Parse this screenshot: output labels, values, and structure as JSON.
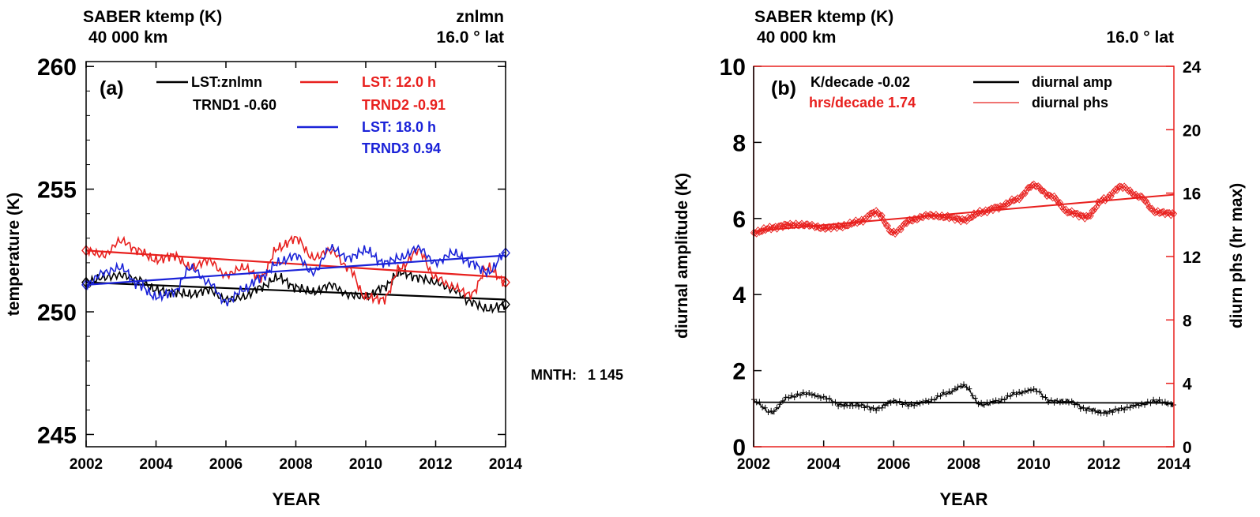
{
  "left_panel": {
    "header_title": "SABER ktemp (K)",
    "header_alt": "40 000 km",
    "header_right": "znlmn",
    "header_lat": "16.0 ° lat",
    "panel_label": "(a)",
    "ylabel": "temperature (K)",
    "xlabel": "YEAR",
    "xticks": [
      "2002",
      "2004",
      "2006",
      "2008",
      "2010",
      "2012",
      "2014"
    ],
    "yticks": [
      "245",
      "250",
      "255",
      "260"
    ],
    "legend": {
      "black_label": "LST:znlmn",
      "black_trend": "TRND1  -0.60",
      "red_label": "LST: 12.0 h",
      "red_trend": "TRND2  -0.91",
      "blue_label": "LST: 18.0 h",
      "blue_trend": "TRND3   0.94"
    }
  },
  "right_panel": {
    "header_title": "SABER ktemp (K)",
    "header_alt": "40 000 km",
    "header_lat": "16.0 ° lat",
    "panel_label": "(b)",
    "ylabel_left": "diurnal amplitude (K)",
    "ylabel_right": "diurn phs (hr max)",
    "xlabel": "YEAR",
    "xticks": [
      "2002",
      "2004",
      "2006",
      "2008",
      "2010",
      "2012",
      "2014"
    ],
    "yticks_left": [
      "0",
      "2",
      "4",
      "6",
      "8",
      "10"
    ],
    "yticks_right": [
      "0",
      "4",
      "8",
      "12",
      "16",
      "20",
      "24"
    ],
    "legend": {
      "amp_trend": "K/decade  -0.02",
      "amp_label": "diurnal amp",
      "phs_trend": "hrs/decade  1.74",
      "phs_label": "diurnal phs"
    }
  },
  "mnth_label": "MNTH:",
  "mnth_value": "1 145",
  "colors": {
    "black": "#000000",
    "red": "#e8201e",
    "blue": "#1a22d8"
  },
  "chart_data": [
    {
      "type": "line",
      "title": "SABER ktemp (K)",
      "xlabel": "YEAR",
      "ylabel": "temperature (K)",
      "xlim": [
        2002,
        2014
      ],
      "ylim": [
        244.5,
        260.2
      ],
      "series": [
        {
          "name": "LST:znlmn",
          "color": "#000000",
          "x": [
            2002.0,
            2002.5,
            2003.0,
            2003.5,
            2004.0,
            2004.5,
            2005.0,
            2005.5,
            2006.0,
            2006.5,
            2007.0,
            2007.5,
            2008.0,
            2008.5,
            2009.0,
            2009.5,
            2010.0,
            2010.5,
            2011.0,
            2011.5,
            2012.0,
            2012.5,
            2013.0,
            2013.5,
            2014.0
          ],
          "y": [
            251.2,
            251.4,
            251.5,
            251.3,
            250.9,
            250.8,
            250.7,
            250.9,
            250.5,
            250.6,
            251.0,
            251.4,
            251.0,
            250.8,
            251.1,
            250.7,
            250.6,
            251.0,
            251.6,
            251.4,
            251.2,
            250.9,
            250.4,
            250.1,
            250.3
          ],
          "trend": [
            251.2,
            250.5
          ]
        },
        {
          "name": "LST: 12.0 h",
          "color": "#e8201e",
          "x": [
            2002.0,
            2002.5,
            2003.0,
            2003.5,
            2004.0,
            2004.5,
            2005.0,
            2005.5,
            2006.0,
            2006.5,
            2007.0,
            2007.5,
            2008.0,
            2008.5,
            2009.0,
            2009.5,
            2010.0,
            2010.5,
            2011.0,
            2011.5,
            2012.0,
            2012.5,
            2013.0,
            2013.5,
            2014.0
          ],
          "y": [
            252.5,
            252.3,
            252.9,
            252.5,
            252.1,
            252.3,
            251.8,
            252.1,
            251.5,
            251.8,
            251.4,
            252.6,
            253.0,
            252.2,
            252.5,
            251.8,
            250.6,
            250.5,
            251.8,
            252.5,
            251.4,
            251.0,
            250.7,
            251.8,
            251.2
          ],
          "trend": [
            252.5,
            251.4
          ]
        },
        {
          "name": "LST: 18.0 h",
          "color": "#1a22d8",
          "x": [
            2002.0,
            2002.5,
            2003.0,
            2003.5,
            2004.0,
            2004.5,
            2005.0,
            2005.5,
            2006.0,
            2006.5,
            2007.0,
            2007.5,
            2008.0,
            2008.5,
            2009.0,
            2009.5,
            2010.0,
            2010.5,
            2011.0,
            2011.5,
            2012.0,
            2012.5,
            2013.0,
            2013.5,
            2014.0
          ],
          "y": [
            251.1,
            251.6,
            251.8,
            251.1,
            250.6,
            250.8,
            251.8,
            251.2,
            250.4,
            250.9,
            251.4,
            252.0,
            252.3,
            251.6,
            252.6,
            252.2,
            252.5,
            252.0,
            252.2,
            252.6,
            252.0,
            252.4,
            252.0,
            251.6,
            252.4
          ],
          "trend": [
            251.1,
            252.3
          ]
        }
      ]
    },
    {
      "type": "line",
      "title": "SABER ktemp (K)",
      "xlabel": "YEAR",
      "ylabel": "diurnal amplitude (K)",
      "y2label": "diurn phs (hr max)",
      "xlim": [
        2002,
        2014
      ],
      "ylim": [
        0,
        10
      ],
      "y2lim": [
        0,
        24
      ],
      "series": [
        {
          "name": "diurnal amp",
          "color": "#000000",
          "axis": "left",
          "x": [
            2002.0,
            2002.5,
            2003.0,
            2003.5,
            2004.0,
            2004.5,
            2005.0,
            2005.5,
            2006.0,
            2006.5,
            2007.0,
            2007.5,
            2008.0,
            2008.5,
            2009.0,
            2009.5,
            2010.0,
            2010.5,
            2011.0,
            2011.5,
            2012.0,
            2012.5,
            2013.0,
            2013.5,
            2014.0
          ],
          "y": [
            1.2,
            0.9,
            1.3,
            1.4,
            1.3,
            1.1,
            1.1,
            1.0,
            1.2,
            1.1,
            1.2,
            1.4,
            1.6,
            1.1,
            1.2,
            1.4,
            1.5,
            1.2,
            1.2,
            1.0,
            0.9,
            1.0,
            1.1,
            1.2,
            1.1
          ],
          "trend": [
            1.17,
            1.15
          ]
        },
        {
          "name": "diurnal phs",
          "color": "#e8201e",
          "axis": "right",
          "x": [
            2002.0,
            2002.5,
            2003.0,
            2003.5,
            2004.0,
            2004.5,
            2005.0,
            2005.5,
            2006.0,
            2006.5,
            2007.0,
            2007.5,
            2008.0,
            2008.5,
            2009.0,
            2009.5,
            2010.0,
            2010.5,
            2011.0,
            2011.5,
            2012.0,
            2012.5,
            2013.0,
            2013.5,
            2014.0
          ],
          "y": [
            13.5,
            13.8,
            14.0,
            14.0,
            13.8,
            13.9,
            14.2,
            14.8,
            13.5,
            14.3,
            14.6,
            14.5,
            14.3,
            14.8,
            15.1,
            15.6,
            16.5,
            15.8,
            14.8,
            14.5,
            15.6,
            16.4,
            15.8,
            14.8,
            14.7
          ],
          "trend": [
            13.6,
            15.9
          ]
        }
      ]
    }
  ]
}
